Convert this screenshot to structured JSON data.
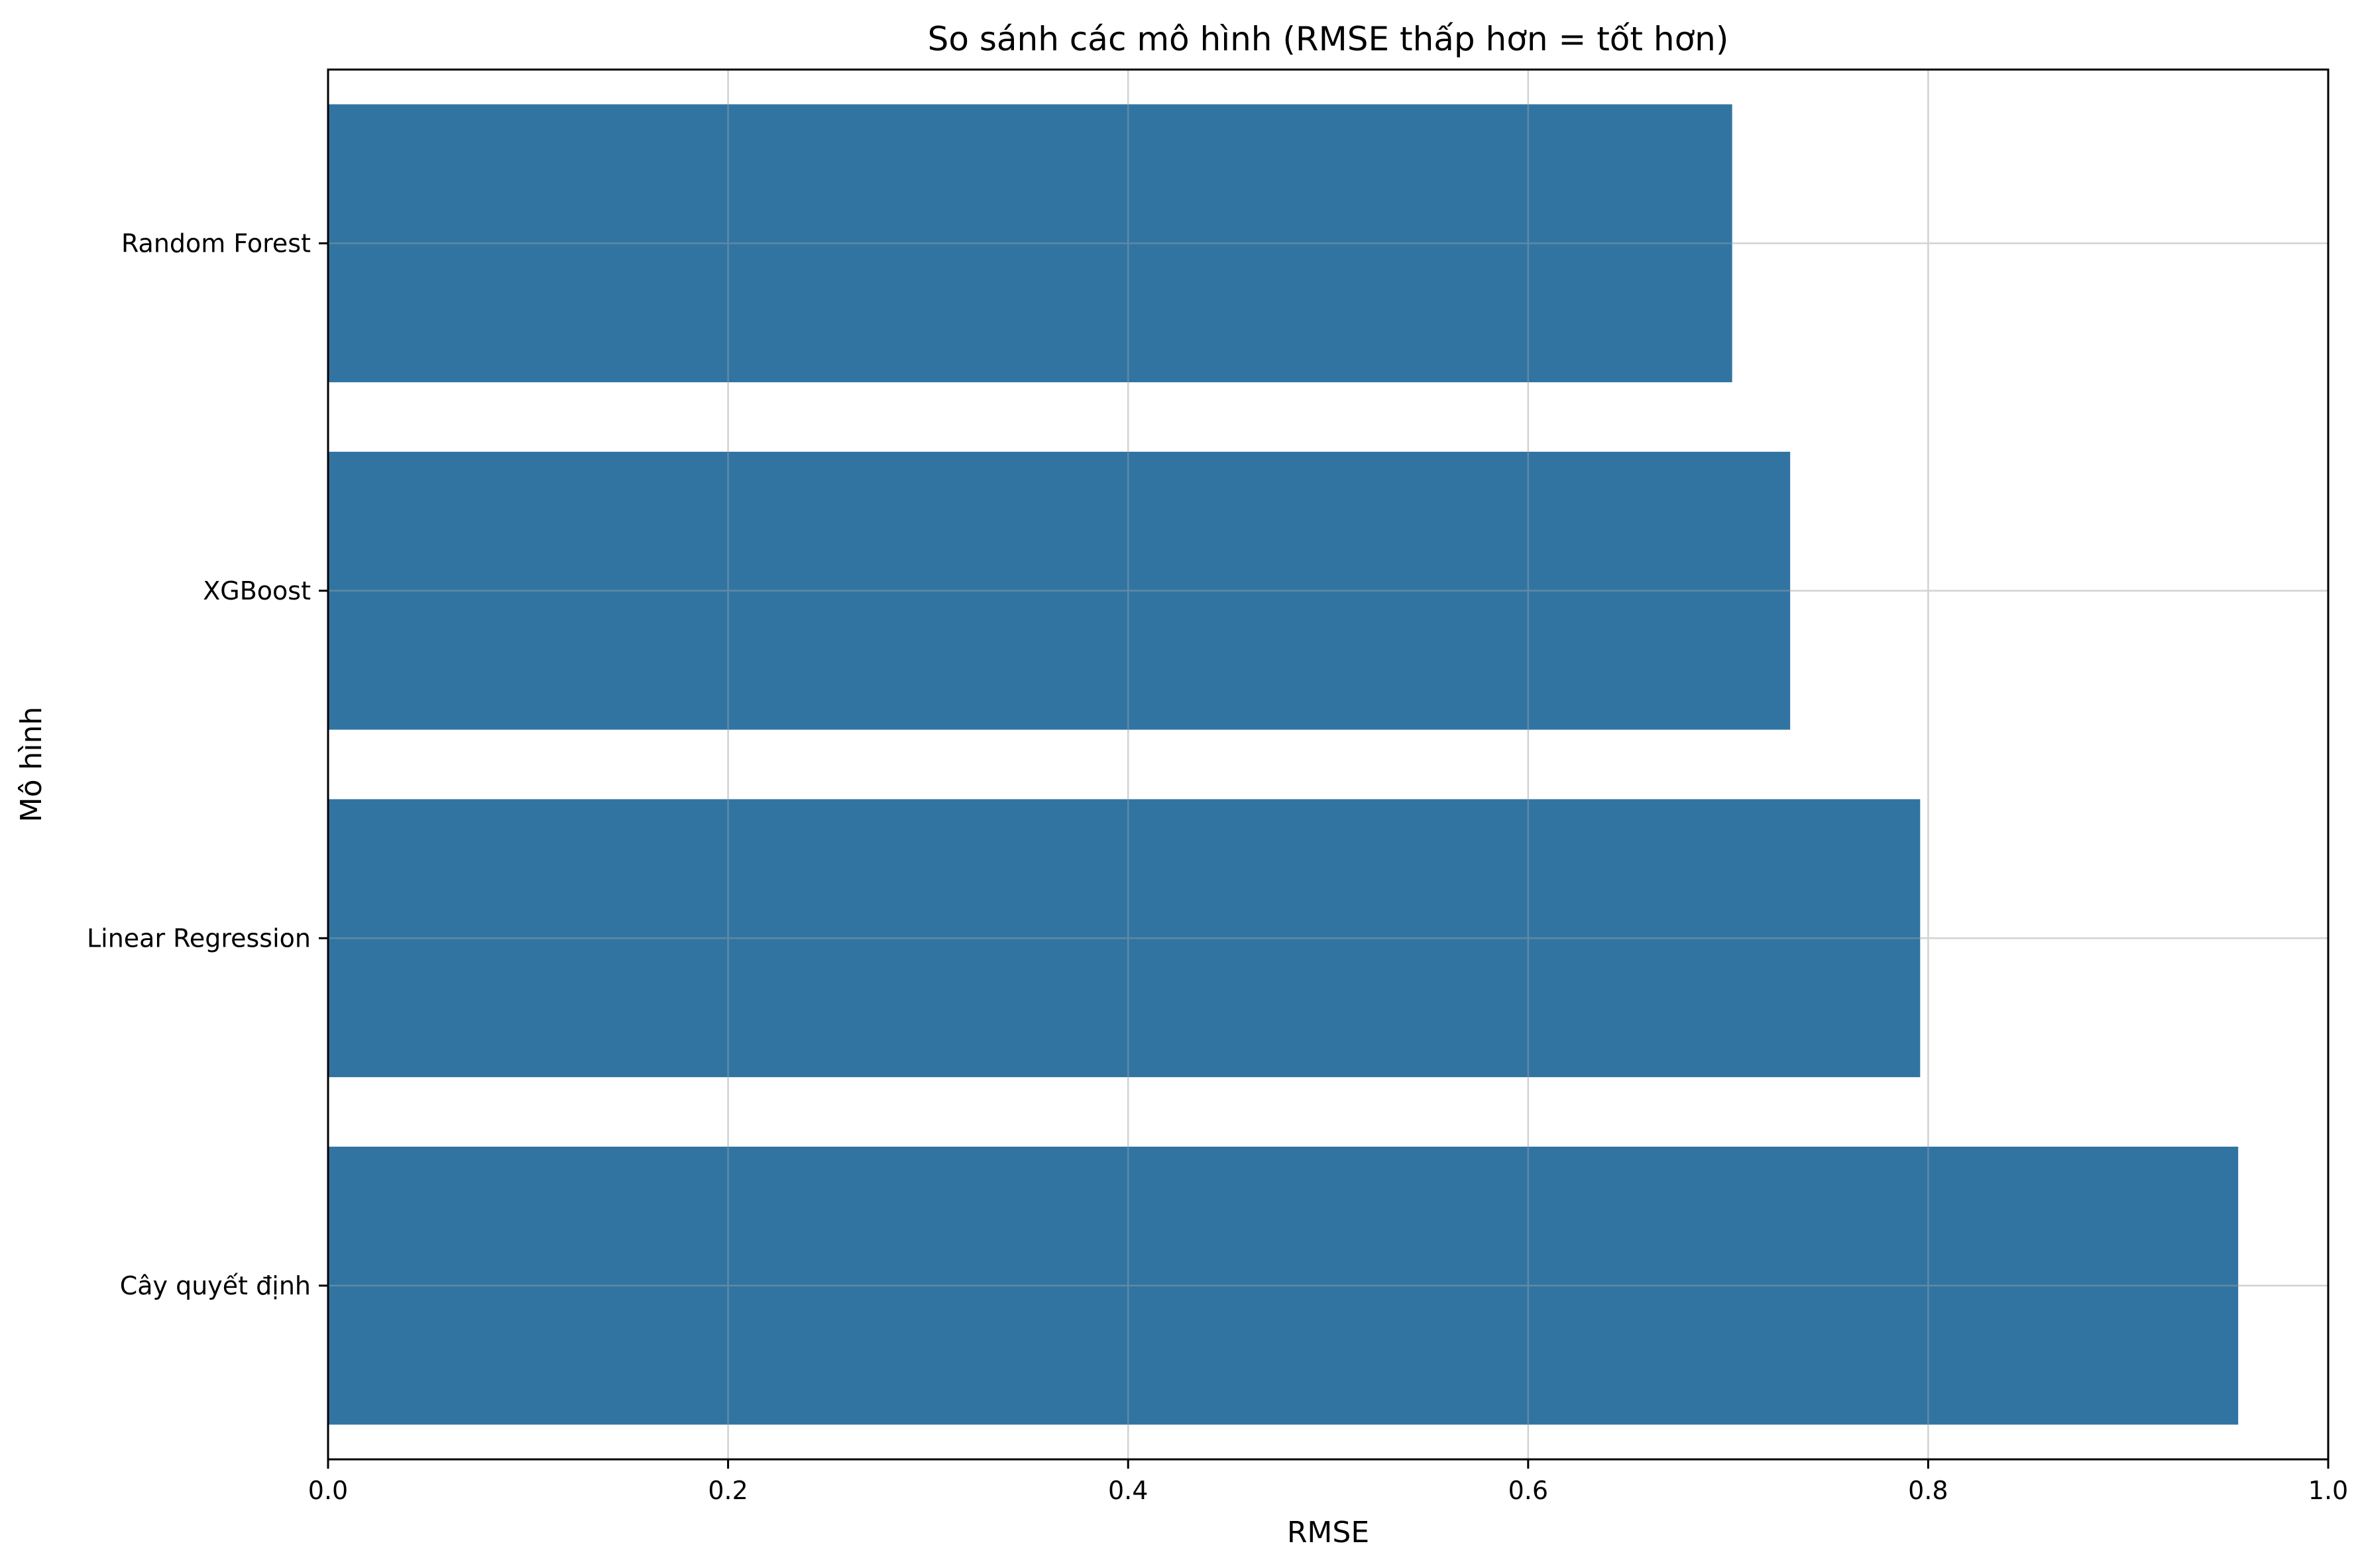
{
  "chart_data": {
    "type": "bar",
    "orientation": "horizontal",
    "title": "So sánh các mô hình (RMSE thấp hơn = tốt hơn)",
    "xlabel": "RMSE",
    "ylabel": "Mô hình",
    "categories": [
      "Random Forest",
      "XGBoost",
      "Linear Regression",
      "Cây quyết định"
    ],
    "values": [
      0.702,
      0.731,
      0.796,
      0.955
    ],
    "xlim": [
      0,
      1.0
    ],
    "x_ticks": [
      "0.0",
      "0.2",
      "0.4",
      "0.6",
      "0.8",
      "1.0"
    ],
    "grid": true,
    "legend": false,
    "bar_color": "#3274a1",
    "grid_color": "#e5e5e5"
  }
}
